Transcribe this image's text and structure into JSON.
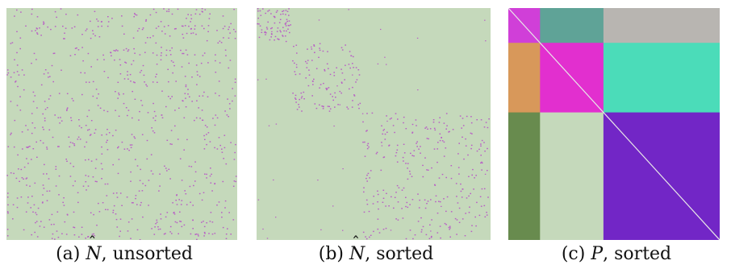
{
  "panels": [
    {
      "id": "a",
      "label": "(a)",
      "math_symbol": "N",
      "math_accent": "hat",
      "suffix": ", unsorted"
    },
    {
      "id": "b",
      "label": "(b)",
      "math_symbol": "N",
      "math_accent": "hat",
      "suffix": ", sorted"
    },
    {
      "id": "c",
      "label": "(c)",
      "math_symbol": "P",
      "math_accent": "",
      "suffix": ", sorted"
    }
  ],
  "colors": {
    "background_cell": "#c5d9bb",
    "dot": "#b85cc5",
    "diagonal": "#e8e8e8",
    "block_colors": [
      [
        "#d03fd8",
        "#5fa397",
        "#b8b5b1"
      ],
      [
        "#d8985a",
        "#e22fcf",
        "#4bdcb9"
      ],
      [
        "#688b4e",
        "#c5d9bb",
        "#7226c6"
      ]
    ]
  },
  "block_fractions": [
    0.15,
    0.3,
    0.55
  ]
}
